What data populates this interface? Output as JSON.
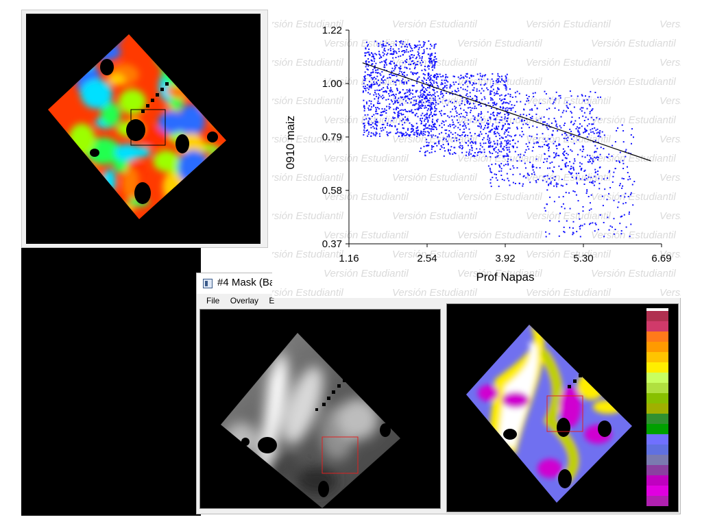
{
  "map_window": {
    "name": "elevation-colored-map",
    "palette": [
      "#ff2d00",
      "#ff7a00",
      "#ffd000",
      "#9cff00",
      "#20ff50",
      "#00e0ff",
      "#2b6cff"
    ],
    "selection_box_color": "#000000"
  },
  "scatter": {
    "watermark_text": "Versión Estudiantil",
    "point_color": "#1010ff",
    "chart_data": {
      "type": "scatter",
      "title": "",
      "xlabel": "Prof Napas",
      "ylabel": "0910 maiz",
      "xlim": [
        1.16,
        6.69
      ],
      "ylim": [
        0.37,
        1.22
      ],
      "xticks": [
        "1.16",
        "2.54",
        "3.92",
        "5.30",
        "6.69"
      ],
      "yticks": [
        "1.22",
        "1.00",
        "0.79",
        "0.58",
        "0.37"
      ],
      "regression_line": {
        "x": [
          1.4,
          6.5
        ],
        "y": [
          1.09,
          0.7
        ],
        "color": "#000000"
      },
      "clusters": [
        {
          "x_range": [
            1.4,
            2.7
          ],
          "y_range": [
            0.8,
            1.18
          ],
          "n": 900
        },
        {
          "x_range": [
            2.4,
            4.0
          ],
          "y_range": [
            0.72,
            1.05
          ],
          "n": 700
        },
        {
          "x_range": [
            3.6,
            5.6
          ],
          "y_range": [
            0.6,
            0.98
          ],
          "n": 500
        },
        {
          "x_range": [
            4.6,
            6.2
          ],
          "y_range": [
            0.4,
            0.85
          ],
          "n": 250
        }
      ]
    }
  },
  "mask_window": {
    "title": "#4 Mask (Ba",
    "menu": [
      "File",
      "Overlay",
      "E"
    ],
    "red_box_color": "#e02020",
    "legend_colors": [
      "#b03050",
      "#d03a6a",
      "#ff7a1a",
      "#ff9a00",
      "#ffc400",
      "#ffee00",
      "#c8ff60",
      "#b0e040",
      "#88c000",
      "#a0b000",
      "#309030",
      "#00a000",
      "#7070ff",
      "#6070e0",
      "#7a7ab0",
      "#8a40a0",
      "#c000c0",
      "#e000e0",
      "#b020b0"
    ]
  }
}
